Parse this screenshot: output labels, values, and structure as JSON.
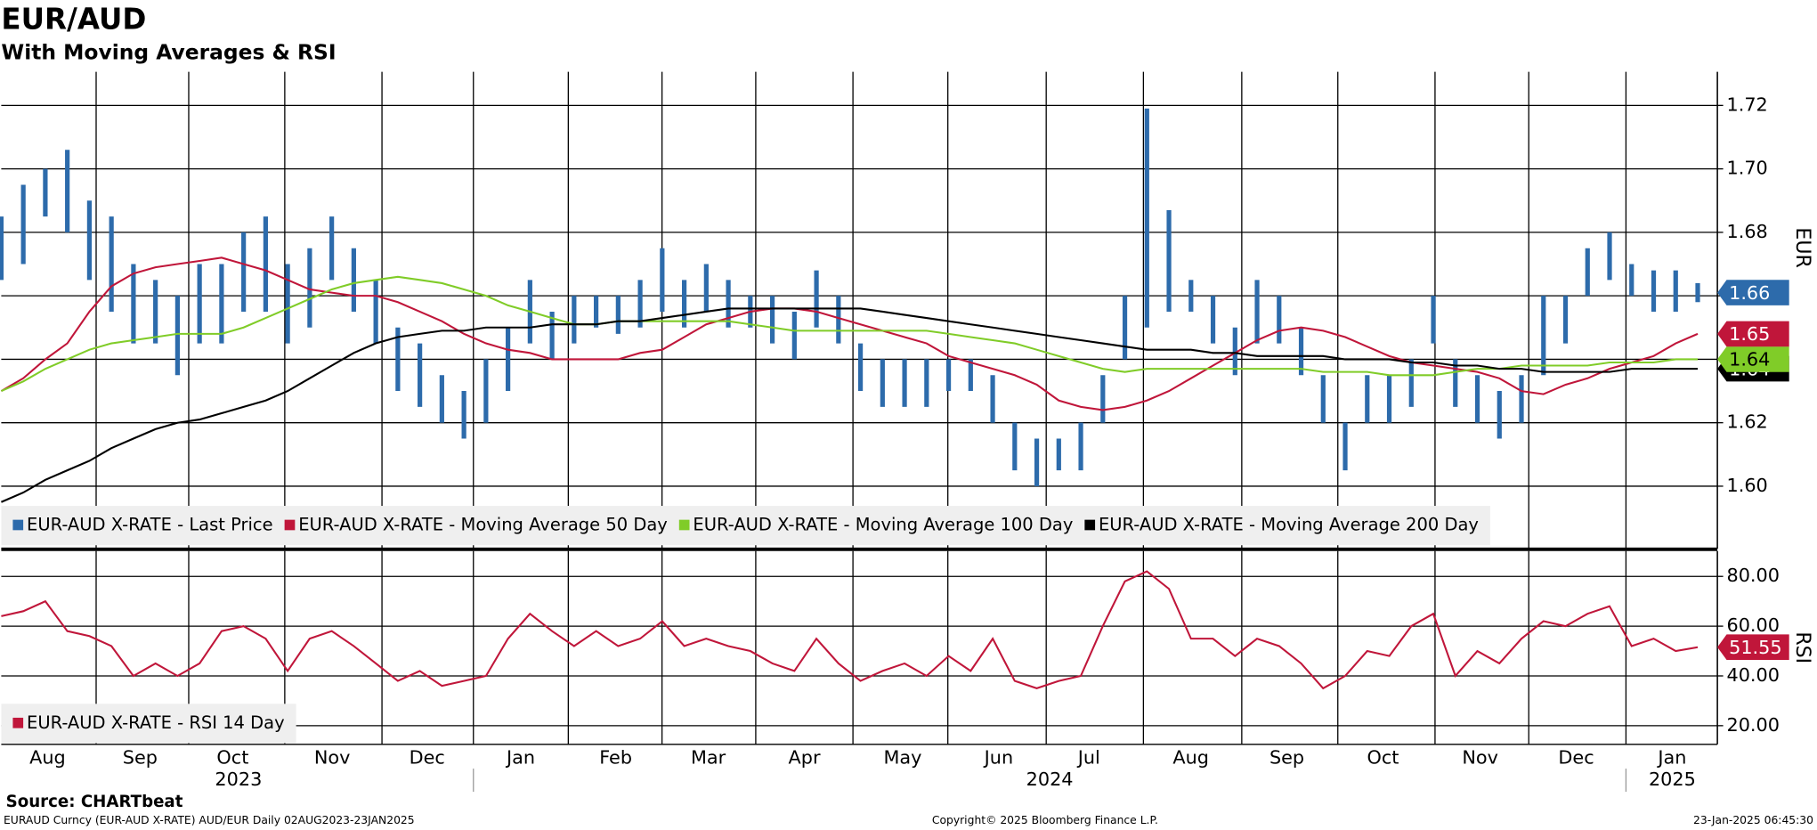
{
  "title": "EUR/AUD",
  "subtitle": "With Moving Averages & RSI",
  "source": "Source: CHARTbeat",
  "footer": {
    "left": "EURAUD Curncy (EUR-AUD X-RATE) AUD/EUR  Daily 02AUG2023-23JAN2025",
    "center": "Copyright© 2025 Bloomberg Finance L.P.",
    "right": "23-Jan-2025 06:45:30"
  },
  "chart_data": [
    {
      "type": "range",
      "y_label": "EUR",
      "ylim": [
        1.5803,
        1.7306
      ],
      "yticks": [
        {
          "value": 1.6,
          "label": "1.60"
        },
        1.62,
        1.64,
        1.66,
        1.68,
        {
          "value": 1.7,
          "label": "1.70"
        },
        1.72
      ],
      "grid": true,
      "series": [
        {
          "name": "EUR-AUD X-RATE - Last Price",
          "color": "#2d6bab",
          "last_label": "1.66",
          "low": [
            1.665,
            1.67,
            1.685,
            1.68,
            1.665,
            1.655,
            1.645,
            1.645,
            1.635,
            1.645,
            1.645,
            1.655,
            1.655,
            1.645,
            1.65,
            1.665,
            1.655,
            1.645,
            1.63,
            1.625,
            1.62,
            1.615,
            1.62,
            1.63,
            1.645,
            1.64,
            1.645,
            1.65,
            1.648,
            1.65,
            1.655,
            1.65,
            1.655,
            1.65,
            1.65,
            1.645,
            1.64,
            1.65,
            1.645,
            1.63,
            1.625,
            1.625,
            1.625,
            1.63,
            1.63,
            1.62,
            1.605,
            1.6,
            1.605,
            1.605,
            1.62,
            1.64,
            1.65,
            1.655,
            1.655,
            1.645,
            1.635,
            1.645,
            1.645,
            1.635,
            1.62,
            1.605,
            1.62,
            1.62,
            1.625,
            1.645,
            1.625,
            1.62,
            1.615,
            1.62,
            1.635,
            1.645,
            1.66,
            1.665,
            1.66,
            1.655,
            1.655,
            1.658
          ],
          "high": [
            1.685,
            1.695,
            1.7,
            1.706,
            1.69,
            1.685,
            1.67,
            1.665,
            1.66,
            1.67,
            1.67,
            1.68,
            1.685,
            1.67,
            1.675,
            1.685,
            1.675,
            1.665,
            1.65,
            1.645,
            1.635,
            1.63,
            1.64,
            1.65,
            1.665,
            1.655,
            1.66,
            1.66,
            1.66,
            1.665,
            1.675,
            1.665,
            1.67,
            1.665,
            1.66,
            1.66,
            1.655,
            1.668,
            1.66,
            1.645,
            1.64,
            1.64,
            1.64,
            1.64,
            1.64,
            1.635,
            1.62,
            1.615,
            1.615,
            1.62,
            1.635,
            1.66,
            1.719,
            1.687,
            1.665,
            1.66,
            1.65,
            1.665,
            1.66,
            1.65,
            1.635,
            1.62,
            1.635,
            1.635,
            1.64,
            1.66,
            1.64,
            1.635,
            1.63,
            1.635,
            1.66,
            1.66,
            1.675,
            1.68,
            1.67,
            1.668,
            1.668,
            1.664
          ]
        },
        {
          "name": "EUR-AUD X-RATE - Moving Average 50 Day",
          "color": "#c0163a",
          "last_label": "1.65",
          "values": [
            1.63,
            1.634,
            1.64,
            1.645,
            1.655,
            1.663,
            1.667,
            1.669,
            1.67,
            1.671,
            1.672,
            1.67,
            1.668,
            1.665,
            1.662,
            1.661,
            1.66,
            1.66,
            1.658,
            1.655,
            1.652,
            1.648,
            1.645,
            1.643,
            1.642,
            1.64,
            1.64,
            1.64,
            1.64,
            1.642,
            1.643,
            1.647,
            1.651,
            1.653,
            1.655,
            1.656,
            1.656,
            1.655,
            1.653,
            1.651,
            1.649,
            1.647,
            1.645,
            1.641,
            1.639,
            1.637,
            1.635,
            1.632,
            1.627,
            1.625,
            1.624,
            1.625,
            1.627,
            1.63,
            1.634,
            1.638,
            1.642,
            1.646,
            1.649,
            1.65,
            1.649,
            1.647,
            1.644,
            1.641,
            1.639,
            1.638,
            1.637,
            1.636,
            1.634,
            1.63,
            1.629,
            1.632,
            1.634,
            1.637,
            1.639,
            1.641,
            1.645,
            1.648
          ]
        },
        {
          "name": "EUR-AUD X-RATE - Moving Average 100 Day",
          "color": "#80cc28",
          "last_label": "1.64",
          "values": [
            1.63,
            1.633,
            1.637,
            1.64,
            1.643,
            1.645,
            1.646,
            1.647,
            1.648,
            1.648,
            1.648,
            1.65,
            1.653,
            1.656,
            1.659,
            1.662,
            1.664,
            1.665,
            1.666,
            1.665,
            1.664,
            1.662,
            1.66,
            1.657,
            1.655,
            1.653,
            1.651,
            1.651,
            1.652,
            1.652,
            1.652,
            1.652,
            1.652,
            1.652,
            1.651,
            1.65,
            1.649,
            1.649,
            1.649,
            1.649,
            1.649,
            1.649,
            1.649,
            1.648,
            1.647,
            1.646,
            1.645,
            1.643,
            1.641,
            1.639,
            1.637,
            1.636,
            1.637,
            1.637,
            1.637,
            1.637,
            1.637,
            1.637,
            1.637,
            1.637,
            1.636,
            1.636,
            1.636,
            1.635,
            1.635,
            1.635,
            1.636,
            1.637,
            1.637,
            1.638,
            1.638,
            1.638,
            1.638,
            1.639,
            1.639,
            1.639,
            1.64,
            1.64
          ]
        },
        {
          "name": "EUR-AUD X-RATE - Moving Average 200 Day",
          "color": "#000000",
          "last_label": "1.64",
          "values": [
            1.595,
            1.598,
            1.602,
            1.605,
            1.608,
            1.612,
            1.615,
            1.618,
            1.62,
            1.621,
            1.623,
            1.625,
            1.627,
            1.63,
            1.634,
            1.638,
            1.642,
            1.645,
            1.647,
            1.648,
            1.649,
            1.649,
            1.65,
            1.65,
            1.65,
            1.651,
            1.651,
            1.651,
            1.652,
            1.652,
            1.653,
            1.654,
            1.655,
            1.656,
            1.656,
            1.656,
            1.656,
            1.656,
            1.656,
            1.656,
            1.655,
            1.654,
            1.653,
            1.652,
            1.651,
            1.65,
            1.649,
            1.648,
            1.647,
            1.646,
            1.645,
            1.644,
            1.643,
            1.643,
            1.643,
            1.642,
            1.642,
            1.641,
            1.641,
            1.641,
            1.641,
            1.64,
            1.64,
            1.64,
            1.639,
            1.639,
            1.638,
            1.638,
            1.637,
            1.637,
            1.636,
            1.636,
            1.636,
            1.636,
            1.637,
            1.637,
            1.637,
            1.637
          ]
        }
      ]
    },
    {
      "type": "line",
      "y_label": "RSI",
      "ylim": [
        12.5,
        90.2
      ],
      "yticks": [
        {
          "value": 20,
          "label": "20.00"
        },
        {
          "value": 40,
          "label": "40.00"
        },
        {
          "value": 60,
          "label": "60.00"
        },
        {
          "value": 80,
          "label": "80.00"
        }
      ],
      "grid": true,
      "xticks": [
        "Aug",
        "Sep",
        "Oct",
        "Nov",
        "Dec",
        "Jan",
        "Feb",
        "Mar",
        "Apr",
        "May",
        "Jun",
        "Jul",
        "Aug",
        "Sep",
        "Oct",
        "Nov",
        "Dec",
        "Jan"
      ],
      "years": [
        "2023",
        "2024",
        "2025"
      ],
      "series": [
        {
          "name": "EUR-AUD X-RATE - RSI 14 Day",
          "color": "#c0163a",
          "last_label": "51.55",
          "values": [
            64,
            66,
            70,
            58,
            56,
            52,
            40,
            45,
            40,
            45,
            58,
            60,
            55,
            42,
            55,
            58,
            52,
            45,
            38,
            42,
            36,
            38,
            40,
            55,
            65,
            58,
            52,
            58,
            52,
            55,
            62,
            52,
            55,
            52,
            50,
            45,
            42,
            55,
            45,
            38,
            42,
            45,
            40,
            48,
            42,
            55,
            38,
            35,
            38,
            40,
            60,
            78,
            82,
            75,
            55,
            55,
            48,
            55,
            52,
            45,
            35,
            40,
            50,
            48,
            60,
            65,
            40,
            50,
            45,
            55,
            62,
            60,
            65,
            68,
            52,
            55,
            50,
            51.55
          ]
        }
      ]
    }
  ]
}
